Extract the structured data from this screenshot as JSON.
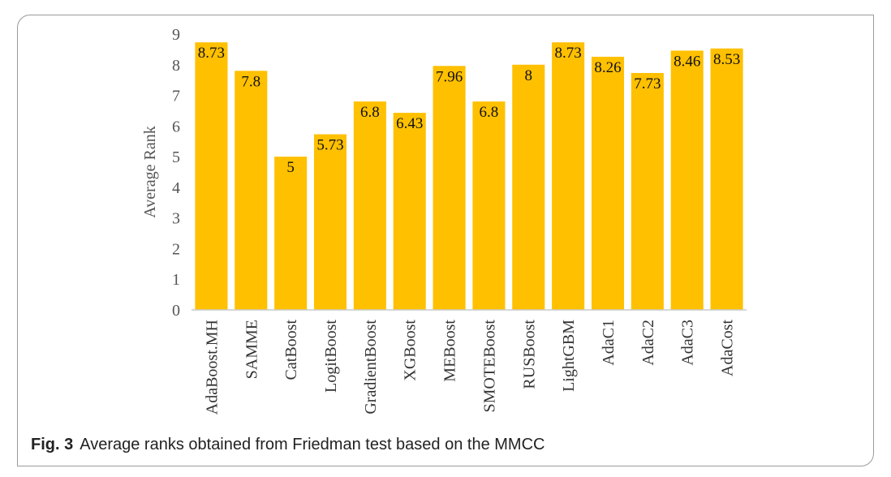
{
  "chart_data": {
    "type": "bar",
    "title": "",
    "xlabel": "",
    "ylabel": "Average Rank",
    "ylim": [
      0,
      9
    ],
    "yticks": [
      0,
      1,
      2,
      3,
      4,
      5,
      6,
      7,
      8,
      9
    ],
    "grid": false,
    "bar_color": "#FFC000",
    "categories": [
      "AdaBoost.MH",
      "SAMME",
      "CatBoost",
      "LogitBoost",
      "GradientBoost",
      "XGBoost",
      "MEBoost",
      "SMOTEBoost",
      "RUSBoost",
      "LightGBM",
      "AdaC1",
      "AdaC2",
      "AdaC3",
      "AdaCost"
    ],
    "values": [
      8.73,
      7.8,
      5,
      5.73,
      6.8,
      6.43,
      7.96,
      6.8,
      8,
      8.73,
      8.26,
      7.73,
      8.46,
      8.53
    ],
    "data_labels": [
      "8.73",
      "7.8",
      "5",
      "5.73",
      "6.8",
      "6.43",
      "7.96",
      "6.8",
      "8",
      "8.73",
      "8.26",
      "7.73",
      "8.46",
      "8.53"
    ]
  },
  "caption": {
    "figure_label": "Fig. 3",
    "text": "Average ranks obtained from Friedman test based on the MMCC"
  }
}
